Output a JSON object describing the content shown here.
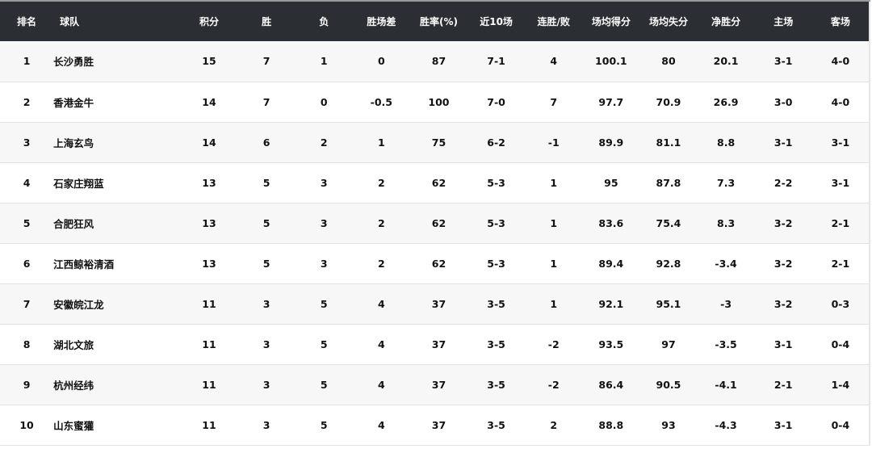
{
  "headers": [
    "排名",
    "球队",
    "积分",
    "胜",
    "负",
    "胜场差",
    "胜率(%)",
    "近10场",
    "连胜/败",
    "场均得分",
    "场均失分",
    "净胜分",
    "主场",
    "客场"
  ],
  "rows": [
    [
      "1",
      "长沙勇胜",
      "15",
      "7",
      "1",
      "0",
      "87",
      "7-1",
      "4",
      "100.1",
      "80",
      "20.1",
      "3-1",
      "4-0"
    ],
    [
      "2",
      "香港金牛",
      "14",
      "7",
      "0",
      "-0.5",
      "100",
      "7-0",
      "7",
      "97.7",
      "70.9",
      "26.9",
      "3-0",
      "4-0"
    ],
    [
      "3",
      "上海玄鸟",
      "14",
      "6",
      "2",
      "1",
      "75",
      "6-2",
      "-1",
      "89.9",
      "81.1",
      "8.8",
      "3-1",
      "3-1"
    ],
    [
      "4",
      "石家庄翔蓝",
      "13",
      "5",
      "3",
      "2",
      "62",
      "5-3",
      "1",
      "95",
      "87.8",
      "7.3",
      "2-2",
      "3-1"
    ],
    [
      "5",
      "合肥狂风",
      "13",
      "5",
      "3",
      "2",
      "62",
      "5-3",
      "1",
      "83.6",
      "75.4",
      "8.3",
      "3-2",
      "2-1"
    ],
    [
      "6",
      "江西鲸裕清酒",
      "13",
      "5",
      "3",
      "2",
      "62",
      "5-3",
      "1",
      "89.4",
      "92.8",
      "-3.4",
      "3-2",
      "2-1"
    ],
    [
      "7",
      "安徽皖江龙",
      "11",
      "3",
      "5",
      "4",
      "37",
      "3-5",
      "1",
      "92.1",
      "95.1",
      "-3",
      "3-2",
      "0-3"
    ],
    [
      "8",
      "湖北文旅",
      "11",
      "3",
      "5",
      "4",
      "37",
      "3-5",
      "-2",
      "93.5",
      "97",
      "-3.5",
      "3-1",
      "0-4"
    ],
    [
      "9",
      "杭州经纬",
      "11",
      "3",
      "5",
      "4",
      "37",
      "3-5",
      "-2",
      "86.4",
      "90.5",
      "-4.1",
      "2-1",
      "1-4"
    ],
    [
      "10",
      "山东蜜獾",
      "11",
      "3",
      "5",
      "4",
      "37",
      "3-5",
      "2",
      "88.8",
      "93",
      "-4.3",
      "3-1",
      "0-4"
    ]
  ]
}
